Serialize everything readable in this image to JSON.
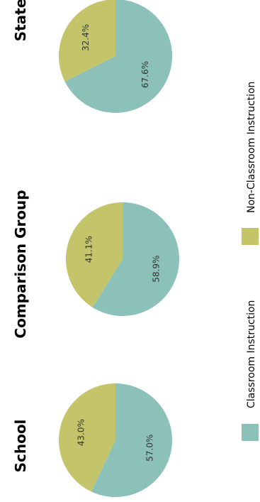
{
  "chart_data": {
    "type": "pie",
    "legend_position": "bottom",
    "series_names": [
      "Classroom Instruction",
      "Non-Classroom Instruction"
    ],
    "colors": {
      "Classroom Instruction": "#8cc1b9",
      "Non-Classroom Instruction": "#c4c46a"
    },
    "charts": [
      {
        "title": "School",
        "values": [
          57.0,
          43.0
        ],
        "labels": [
          "57.0%",
          "43.0%"
        ]
      },
      {
        "title": "Comparison Group",
        "values": [
          58.9,
          41.1
        ],
        "labels": [
          "58.9%",
          "41.1%"
        ]
      },
      {
        "title": "State",
        "values": [
          67.6,
          32.4
        ],
        "labels": [
          "67.6%",
          "32.4%"
        ]
      }
    ]
  }
}
